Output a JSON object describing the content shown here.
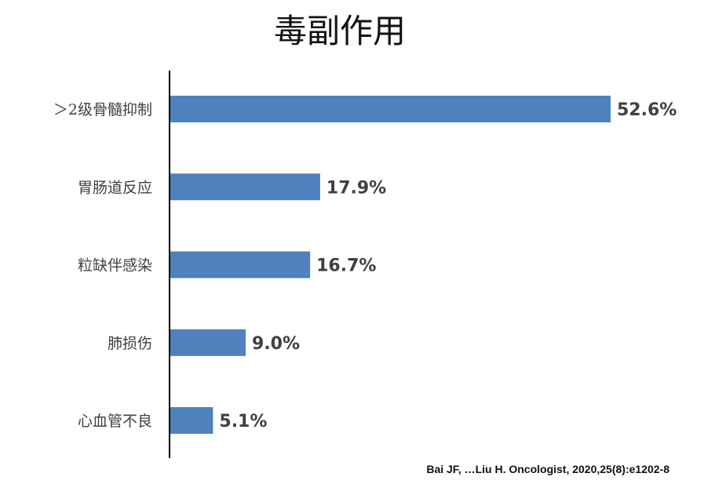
{
  "slide": {
    "title": "毒副作用",
    "citation": "Bai JF, …Liu H. Oncologist, 2020,25(8):e1202-8"
  },
  "chart_data": {
    "type": "bar",
    "orientation": "horizontal",
    "title": "毒副作用",
    "categories": [
      "＞2级骨髓抑制",
      "胃肠道反应",
      "粒缺伴感染",
      "肺损伤",
      "心血管不良"
    ],
    "values": [
      52.6,
      17.9,
      16.7,
      9.0,
      5.1
    ],
    "value_labels": [
      "52.6%",
      "17.9%",
      "16.7%",
      "9.0%",
      "5.1%"
    ],
    "xlabel": "",
    "ylabel": "",
    "xlim": [
      0,
      52.6
    ],
    "grid": false,
    "bar_color": "#4f81bd"
  }
}
